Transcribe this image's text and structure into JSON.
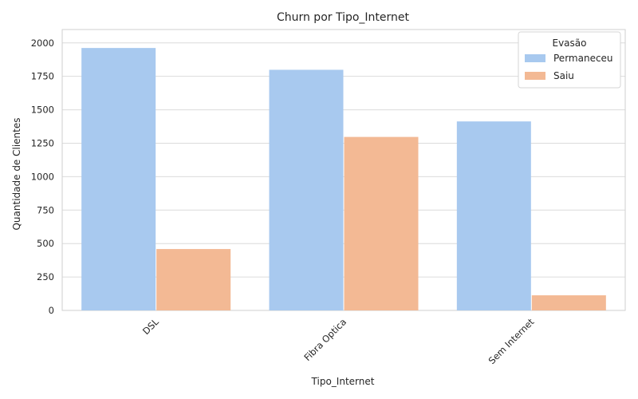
{
  "chart_data": {
    "type": "bar",
    "title": "Churn por Tipo_Internet",
    "xlabel": "Tipo_Internet",
    "ylabel": "Quantidade de Clientes",
    "categories": [
      "DSL",
      "Fibra Optica",
      "Sem Internet"
    ],
    "series": [
      {
        "name": "Permaneceu",
        "values": [
          1962,
          1799,
          1413
        ],
        "color": "#a8c9ef"
      },
      {
        "name": "Saiu",
        "values": [
          459,
          1297,
          113
        ],
        "color": "#f3b994"
      }
    ],
    "ylim": [
      0,
      2100
    ],
    "yticks": [
      0,
      250,
      500,
      750,
      1000,
      1250,
      1500,
      1750,
      2000
    ],
    "grid": true,
    "legend": {
      "title": "Evasão",
      "position": "top-right"
    }
  }
}
